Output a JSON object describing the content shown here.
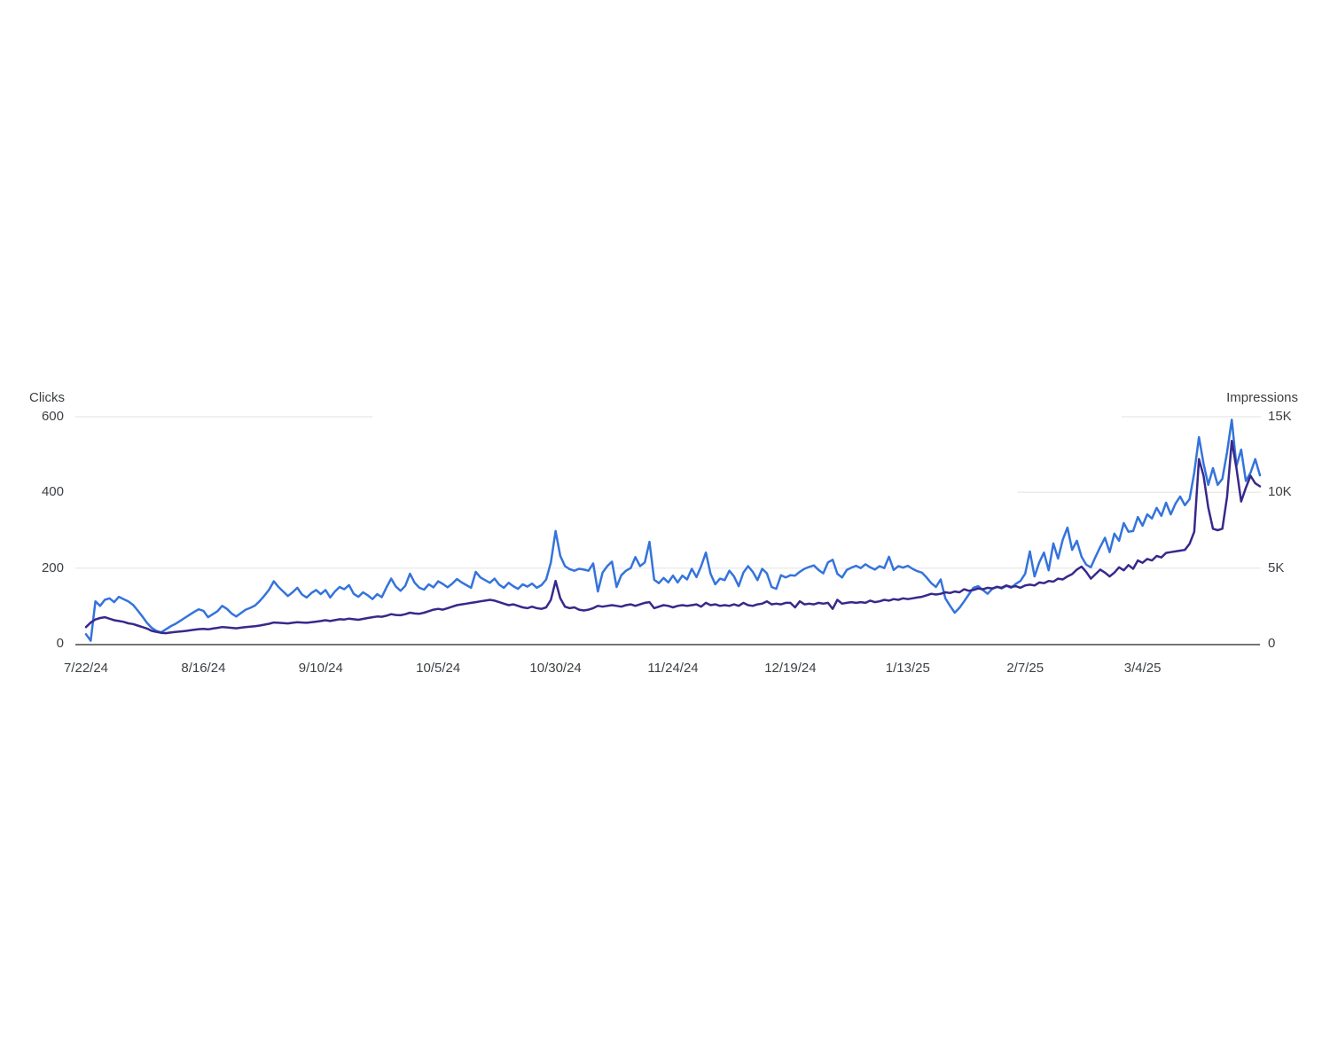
{
  "chart_data": {
    "type": "line",
    "title": "",
    "n_points": 251,
    "x_axis": {
      "granularity": "daily",
      "tick_labels": [
        "7/22/24",
        "8/16/24",
        "9/10/24",
        "10/5/24",
        "10/30/24",
        "11/24/24",
        "12/19/24",
        "1/13/25",
        "2/7/25",
        "3/4/25"
      ],
      "tick_day_indices": [
        0,
        25,
        50,
        75,
        100,
        125,
        150,
        175,
        200,
        225
      ]
    },
    "left_axis": {
      "label": "Clicks",
      "ticks": [
        "600",
        "400",
        "200",
        "0"
      ],
      "tick_values": [
        600,
        400,
        200,
        0
      ],
      "min": 0,
      "max": 600
    },
    "right_axis": {
      "label": "Impressions",
      "ticks": [
        "15K",
        "10K",
        "5K",
        "0"
      ],
      "tick_values": [
        15000,
        10000,
        5000,
        0
      ],
      "min": 0,
      "max": 15000
    },
    "grid": {
      "horizontal": true,
      "vertical": false
    },
    "legend": "none",
    "series": [
      {
        "name": "Clicks",
        "axis": "left",
        "color": "#3573dc",
        "values": [
          25,
          8,
          112,
          100,
          116,
          120,
          110,
          124,
          118,
          112,
          103,
          88,
          72,
          55,
          42,
          34,
          30,
          38,
          46,
          52,
          60,
          68,
          76,
          84,
          91,
          87,
          70,
          78,
          86,
          100,
          92,
          80,
          72,
          81,
          90,
          95,
          101,
          113,
          127,
          143,
          165,
          150,
          138,
          126,
          136,
          148,
          130,
          122,
          134,
          142,
          131,
          142,
          122,
          138,
          150,
          144,
          155,
          132,
          124,
          136,
          128,
          118,
          131,
          123,
          149,
          172,
          151,
          140,
          153,
          185,
          161,
          148,
          143,
          157,
          149,
          165,
          158,
          149,
          159,
          171,
          162,
          155,
          148,
          190,
          175,
          168,
          161,
          172,
          156,
          148,
          161,
          152,
          145,
          157,
          151,
          159,
          148,
          155,
          170,
          215,
          298,
          232,
          205,
          197,
          193,
          198,
          196,
          193,
          212,
          138,
          188,
          205,
          217,
          150,
          181,
          193,
          200,
          229,
          205,
          215,
          269,
          169,
          160,
          174,
          162,
          180,
          162,
          180,
          170,
          198,
          176,
          205,
          241,
          185,
          157,
          172,
          168,
          193,
          178,
          152,
          188,
          205,
          190,
          168,
          198,
          186,
          150,
          145,
          181,
          175,
          181,
          180,
          190,
          198,
          203,
          207,
          195,
          186,
          215,
          222,
          185,
          175,
          195,
          201,
          206,
          200,
          210,
          202,
          196,
          205,
          200,
          230,
          195,
          205,
          201,
          206,
          198,
          192,
          188,
          175,
          160,
          150,
          170,
          120,
          100,
          82,
          95,
          112,
          130,
          148,
          152,
          142,
          132,
          145,
          151,
          146,
          153,
          148,
          158,
          166,
          185,
          244,
          178,
          215,
          241,
          194,
          265,
          225,
          275,
          307,
          248,
          272,
          230,
          209,
          202,
          230,
          256,
          280,
          242,
          291,
          272,
          319,
          296,
          298,
          335,
          312,
          342,
          331,
          359,
          338,
          373,
          342,
          370,
          389,
          366,
          382,
          452,
          546,
          476,
          420,
          464,
          420,
          436,
          506,
          592,
          470,
          513,
          430,
          452,
          488,
          445
        ]
      },
      {
        "name": "Impressions",
        "axis": "right",
        "color": "#37288c",
        "values": [
          1100,
          1400,
          1600,
          1700,
          1750,
          1650,
          1550,
          1500,
          1450,
          1350,
          1300,
          1200,
          1100,
          1000,
          850,
          780,
          720,
          700,
          740,
          780,
          800,
          840,
          880,
          920,
          960,
          980,
          950,
          1000,
          1050,
          1100,
          1080,
          1050,
          1020,
          1060,
          1100,
          1130,
          1160,
          1200,
          1260,
          1320,
          1400,
          1380,
          1360,
          1340,
          1380,
          1420,
          1400,
          1380,
          1420,
          1460,
          1500,
          1550,
          1500,
          1560,
          1620,
          1600,
          1660,
          1620,
          1580,
          1640,
          1700,
          1750,
          1800,
          1780,
          1850,
          1950,
          1900,
          1880,
          1950,
          2050,
          2000,
          1980,
          2050,
          2150,
          2250,
          2300,
          2250,
          2350,
          2450,
          2550,
          2600,
          2650,
          2700,
          2750,
          2800,
          2850,
          2900,
          2850,
          2750,
          2650,
          2550,
          2600,
          2500,
          2400,
          2350,
          2450,
          2350,
          2300,
          2400,
          2900,
          4150,
          3000,
          2450,
          2350,
          2400,
          2250,
          2200,
          2250,
          2350,
          2500,
          2450,
          2500,
          2550,
          2500,
          2450,
          2550,
          2600,
          2500,
          2600,
          2700,
          2750,
          2350,
          2450,
          2550,
          2500,
          2400,
          2500,
          2550,
          2500,
          2550,
          2600,
          2450,
          2700,
          2550,
          2600,
          2500,
          2550,
          2500,
          2600,
          2500,
          2700,
          2550,
          2500,
          2600,
          2650,
          2800,
          2600,
          2650,
          2600,
          2700,
          2700,
          2400,
          2800,
          2600,
          2650,
          2600,
          2700,
          2650,
          2700,
          2300,
          2900,
          2650,
          2700,
          2750,
          2700,
          2750,
          2700,
          2850,
          2750,
          2800,
          2900,
          2850,
          2950,
          2900,
          3000,
          2950,
          3000,
          3050,
          3100,
          3200,
          3300,
          3250,
          3300,
          3400,
          3350,
          3450,
          3400,
          3600,
          3500,
          3550,
          3650,
          3600,
          3700,
          3650,
          3750,
          3700,
          3850,
          3750,
          3800,
          3700,
          3850,
          3900,
          3850,
          4050,
          4000,
          4150,
          4100,
          4300,
          4250,
          4450,
          4600,
          4900,
          5100,
          4750,
          4300,
          4600,
          4900,
          4700,
          4450,
          4700,
          5050,
          4850,
          5200,
          4950,
          5500,
          5350,
          5600,
          5500,
          5800,
          5700,
          6000,
          6050,
          6100,
          6150,
          6200,
          6600,
          7400,
          12200,
          11100,
          9000,
          7600,
          7500,
          7600,
          9700,
          13400,
          11600,
          9400,
          10300,
          11100,
          10600,
          10400
        ]
      }
    ],
    "colors": {
      "clicks_line": "#3573dc",
      "impressions_line": "#37288c",
      "gridline": "#ebebeb",
      "baseline": "#757575",
      "axis_text": "#3c4043",
      "background": "#ffffff"
    }
  }
}
